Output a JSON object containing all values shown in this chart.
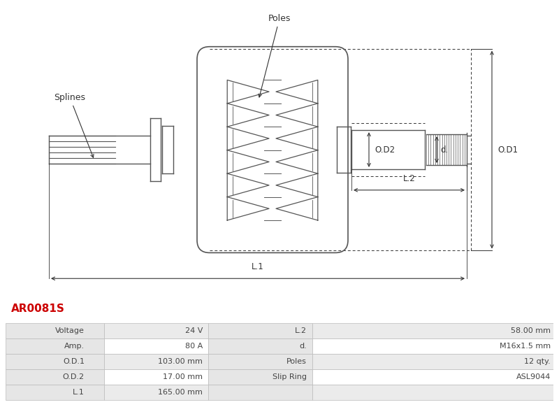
{
  "title_code": "AR0081S",
  "title_color": "#cc0000",
  "bg_color": "#ffffff",
  "table_data": [
    [
      "Voltage",
      "24 V",
      "L.2",
      "58.00 mm"
    ],
    [
      "Amp.",
      "80 A",
      "d.",
      "M16x1.5 mm"
    ],
    [
      "O.D.1",
      "103.00 mm",
      "Poles",
      "12 qty."
    ],
    [
      "O.D.2",
      "17.00 mm",
      "Slip Ring",
      "ASL9044"
    ],
    [
      "L.1",
      "165.00 mm",
      "",
      ""
    ]
  ],
  "row_colors": [
    "#ebebeb",
    "#ffffff",
    "#ebebeb",
    "#ffffff",
    "#ebebeb"
  ],
  "line_color": "#555555",
  "dim_color": "#333333"
}
